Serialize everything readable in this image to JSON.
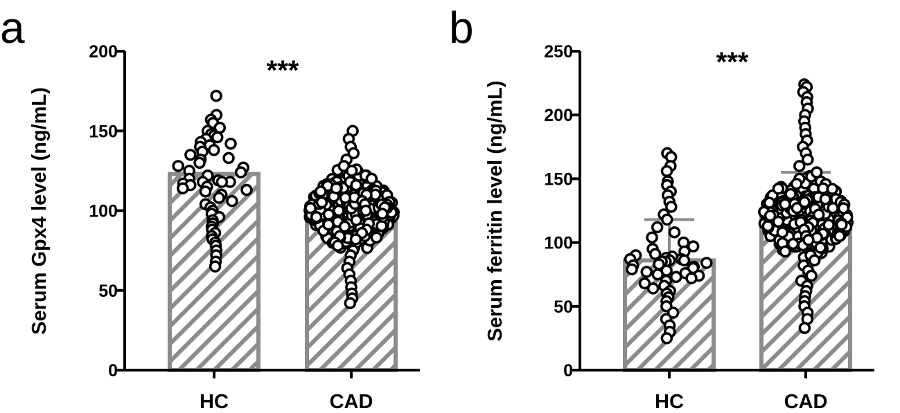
{
  "chart_data": [
    {
      "panel_label": "a",
      "type": "bar",
      "ylabel": "Serum Gpx4 level (ng/mL)",
      "ylim": [
        0,
        200
      ],
      "yticks": [
        0,
        50,
        100,
        150,
        200
      ],
      "categories": [
        "HC",
        "CAD"
      ],
      "values": [
        123,
        100
      ],
      "error_upper": [
        null,
        null
      ],
      "significance": "***",
      "bar_fill": "diagonal-hatch",
      "colors": {
        "bar_stroke": "#8c8c8c",
        "hatch": "#8c8c8c",
        "points": "#000000"
      },
      "points": {
        "HC": [
          172,
          160,
          157,
          155,
          152,
          150,
          148,
          147,
          146,
          145,
          143,
          142,
          141,
          140,
          138,
          137,
          135,
          133,
          132,
          130,
          128,
          127,
          125,
          124,
          122,
          120,
          119,
          118,
          118,
          118,
          117,
          116,
          115,
          114,
          113,
          112,
          110,
          108,
          106,
          104,
          102,
          100,
          98,
          96,
          94,
          92,
          90,
          88,
          86,
          84,
          82,
          80,
          78,
          75,
          72,
          68,
          65
        ],
        "CAD": [
          150,
          145,
          140,
          136,
          132,
          128,
          125,
          122,
          120,
          118,
          116,
          114,
          112,
          110,
          108,
          106,
          104,
          102,
          100,
          98,
          96,
          94,
          92,
          90,
          88,
          86,
          84,
          82,
          80,
          78,
          75,
          72,
          68,
          64,
          60,
          56,
          52,
          48,
          45,
          42
        ]
      }
    },
    {
      "panel_label": "b",
      "type": "bar",
      "ylabel": "Serum ferritin level (ng/mL)",
      "ylim": [
        0,
        250
      ],
      "yticks": [
        0,
        50,
        100,
        150,
        200,
        250
      ],
      "categories": [
        "HC",
        "CAD"
      ],
      "values": [
        86,
        120
      ],
      "error_upper": [
        118,
        155
      ],
      "significance": "***",
      "bar_fill": "diagonal-hatch",
      "colors": {
        "bar_stroke": "#8c8c8c",
        "hatch": "#8c8c8c",
        "points": "#000000"
      },
      "points": {
        "HC": [
          170,
          167,
          160,
          156,
          148,
          145,
          140,
          137,
          132,
          128,
          122,
          118,
          112,
          108,
          104,
          100,
          97,
          95,
          93,
          91,
          90,
          89,
          88,
          87,
          87,
          86,
          86,
          85,
          85,
          84,
          83,
          82,
          81,
          80,
          79,
          78,
          77,
          76,
          75,
          74,
          73,
          72,
          70,
          68,
          66,
          64,
          62,
          60,
          57,
          54,
          50,
          45,
          40,
          35,
          30,
          25
        ],
        "CAD": [
          224,
          222,
          218,
          214,
          210,
          205,
          200,
          195,
          190,
          185,
          180,
          175,
          170,
          165,
          160,
          155,
          150,
          146,
          142,
          138,
          134,
          130,
          127,
          124,
          121,
          118,
          116,
          114,
          112,
          110,
          108,
          105,
          102,
          99,
          96,
          93,
          90,
          86,
          82,
          78,
          74,
          70,
          66,
          62,
          58,
          54,
          50,
          45,
          40,
          33
        ]
      }
    }
  ]
}
